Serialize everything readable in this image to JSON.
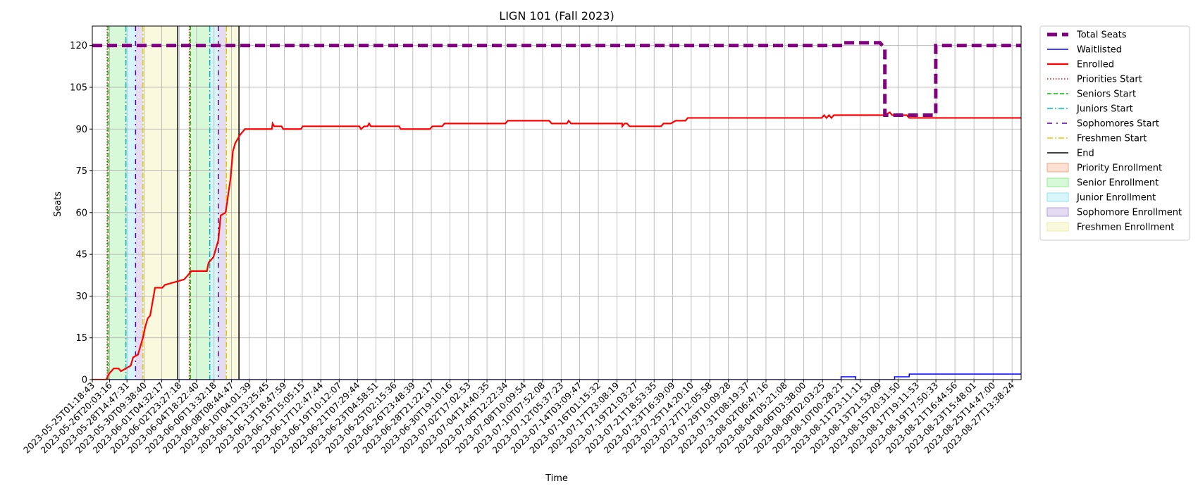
{
  "chart_data": {
    "type": "line",
    "title": "LIGN 101 (Fall 2023)",
    "xlabel": "Time",
    "ylabel": "Seats",
    "x_range": [
      "2023-05-25T01:18:43",
      "2023-08-28T12:00:00"
    ],
    "ylim": [
      0,
      127
    ],
    "yticks": [
      0,
      15,
      30,
      45,
      60,
      75,
      90,
      105,
      120
    ],
    "xticks": [
      "2023-05-25T01:18:43",
      "2023-05-26T20:03:16",
      "2023-05-28T14:47:31",
      "2023-05-30T09:38:40",
      "2023-06-01T04:32:17",
      "2023-06-02T23:27:18",
      "2023-06-04T18:22:40",
      "2023-06-06T13:32:18",
      "2023-06-08T08:44:47",
      "2023-06-10T04:01:39",
      "2023-06-11T23:25:45",
      "2023-06-13T18:47:59",
      "2023-06-15T15:05:15",
      "2023-06-17T12:47:44",
      "2023-06-19T10:12:07",
      "2023-06-21T07:29:44",
      "2023-06-23T04:58:51",
      "2023-06-25T02:15:36",
      "2023-06-26T23:48:39",
      "2023-06-28T21:22:17",
      "2023-06-30T19:10:16",
      "2023-07-02T17:02:53",
      "2023-07-04T14:40:35",
      "2023-07-06T12:22:34",
      "2023-07-08T10:09:54",
      "2023-07-10T07:52:08",
      "2023-07-12T05:37:23",
      "2023-07-14T03:09:47",
      "2023-07-16T01:15:32",
      "2023-07-17T23:08:19",
      "2023-07-19T21:03:27",
      "2023-07-21T18:53:35",
      "2023-07-23T16:39:09",
      "2023-07-25T14:20:10",
      "2023-07-27T12:05:58",
      "2023-07-29T10:09:28",
      "2023-07-31T08:19:37",
      "2023-08-02T06:47:16",
      "2023-08-04T05:21:08",
      "2023-08-06T03:38:00",
      "2023-08-08T02:03:25",
      "2023-08-10T00:28:21",
      "2023-08-11T23:11:11",
      "2023-08-13T21:53:09",
      "2023-08-15T20:31:50",
      "2023-08-17T19:11:53",
      "2023-08-19T17:50:33",
      "2023-08-21T16:44:56",
      "2023-08-23T15:48:01",
      "2023-08-25T14:47:00",
      "2023-08-27T13:38:24"
    ],
    "grid": true,
    "legend_position": "outside-right",
    "series": [
      {
        "name": "Total Seats",
        "color": "#800080",
        "style": "dashed-thick",
        "points": [
          [
            "2023-05-25T01:18:43",
            120
          ],
          [
            "2023-08-10T06:00:00",
            120
          ],
          [
            "2023-08-10T06:00:00",
            121
          ],
          [
            "2023-08-14T00:00:00",
            121
          ],
          [
            "2023-08-14T12:00:00",
            119
          ],
          [
            "2023-08-14T12:00:00",
            95
          ],
          [
            "2023-08-19T17:30:00",
            95
          ],
          [
            "2023-08-19T17:30:00",
            120
          ],
          [
            "2023-08-28T12:00:00",
            120
          ]
        ]
      },
      {
        "name": "Waitlisted",
        "color": "#0000ff",
        "style": "solid",
        "points": [
          [
            "2023-05-25T01:18:43",
            0
          ],
          [
            "2023-08-10T00:00:00",
            0
          ],
          [
            "2023-08-10T00:00:00",
            1
          ],
          [
            "2023-08-11T12:00:00",
            1
          ],
          [
            "2023-08-11T12:00:00",
            0
          ],
          [
            "2023-08-15T12:00:00",
            0
          ],
          [
            "2023-08-15T12:00:00",
            1
          ],
          [
            "2023-08-17T00:00:00",
            1
          ],
          [
            "2023-08-17T00:00:00",
            2
          ],
          [
            "2023-08-28T12:00:00",
            2
          ]
        ]
      },
      {
        "name": "Enrolled",
        "color": "#ff0000",
        "style": "solid",
        "points": [
          [
            "2023-05-25T01:18:43",
            0
          ],
          [
            "2023-05-26T12:00:00",
            0
          ],
          [
            "2023-05-26T18:00:00",
            2
          ],
          [
            "2023-05-27T00:00:00",
            3
          ],
          [
            "2023-05-27T06:00:00",
            4
          ],
          [
            "2023-05-27T18:00:00",
            4
          ],
          [
            "2023-05-28T00:00:00",
            3
          ],
          [
            "2023-05-28T12:00:00",
            4
          ],
          [
            "2023-05-29T00:00:00",
            5
          ],
          [
            "2023-05-29T06:00:00",
            8
          ],
          [
            "2023-05-29T18:00:00",
            9
          ],
          [
            "2023-05-30T00:00:00",
            12
          ],
          [
            "2023-05-30T06:00:00",
            15
          ],
          [
            "2023-05-30T12:00:00",
            19
          ],
          [
            "2023-05-30T18:00:00",
            22
          ],
          [
            "2023-05-31T00:00:00",
            23
          ],
          [
            "2023-05-31T06:00:00",
            28
          ],
          [
            "2023-05-31T12:00:00",
            33
          ],
          [
            "2023-06-01T06:00:00",
            33
          ],
          [
            "2023-06-01T12:00:00",
            34
          ],
          [
            "2023-06-02T12:00:00",
            35
          ],
          [
            "2023-06-03T12:00:00",
            36
          ],
          [
            "2023-06-04T00:00:00",
            38
          ],
          [
            "2023-06-04T06:00:00",
            39
          ],
          [
            "2023-06-05T20:00:00",
            39
          ],
          [
            "2023-06-06T00:00:00",
            42
          ],
          [
            "2023-06-06T12:00:00",
            44
          ],
          [
            "2023-06-07T00:00:00",
            50
          ],
          [
            "2023-06-07T06:00:00",
            59
          ],
          [
            "2023-06-07T18:00:00",
            60
          ],
          [
            "2023-06-08T06:00:00",
            72
          ],
          [
            "2023-06-08T12:00:00",
            82
          ],
          [
            "2023-06-08T18:00:00",
            85
          ],
          [
            "2023-06-09T06:00:00",
            88
          ],
          [
            "2023-06-09T12:00:00",
            89
          ],
          [
            "2023-06-09T18:00:00",
            90
          ],
          [
            "2023-06-12T12:00:00",
            90
          ],
          [
            "2023-06-12T14:00:00",
            92
          ],
          [
            "2023-06-12T18:00:00",
            91
          ],
          [
            "2023-06-13T12:00:00",
            91
          ],
          [
            "2023-06-13T16:00:00",
            90
          ],
          [
            "2023-06-15T12:00:00",
            90
          ],
          [
            "2023-06-15T16:00:00",
            91
          ],
          [
            "2023-06-21T12:00:00",
            91
          ],
          [
            "2023-06-21T16:00:00",
            90
          ],
          [
            "2023-06-22T00:00:00",
            91
          ],
          [
            "2023-06-22T08:00:00",
            91
          ],
          [
            "2023-06-22T12:00:00",
            92
          ],
          [
            "2023-06-22T16:00:00",
            91
          ],
          [
            "2023-06-25T14:00:00",
            91
          ],
          [
            "2023-06-25T18:00:00",
            90
          ],
          [
            "2023-06-28T18:00:00",
            90
          ],
          [
            "2023-06-29T00:00:00",
            91
          ],
          [
            "2023-06-30T00:00:00",
            91
          ],
          [
            "2023-06-30T06:00:00",
            92
          ],
          [
            "2023-07-06T12:00:00",
            92
          ],
          [
            "2023-07-06T18:00:00",
            93
          ],
          [
            "2023-07-08T08:00:00",
            93
          ],
          [
            "2023-07-11T00:00:00",
            93
          ],
          [
            "2023-07-11T06:00:00",
            92
          ],
          [
            "2023-07-12T20:00:00",
            92
          ],
          [
            "2023-07-13T00:00:00",
            93
          ],
          [
            "2023-07-13T06:00:00",
            92
          ],
          [
            "2023-07-18T12:00:00",
            92
          ],
          [
            "2023-07-18T12:30:00",
            91
          ],
          [
            "2023-07-18T18:00:00",
            92
          ],
          [
            "2023-07-19T00:00:00",
            92
          ],
          [
            "2023-07-19T06:00:00",
            91
          ],
          [
            "2023-07-22T12:00:00",
            91
          ],
          [
            "2023-07-22T18:00:00",
            92
          ],
          [
            "2023-07-23T12:00:00",
            92
          ],
          [
            "2023-07-24T00:00:00",
            93
          ],
          [
            "2023-07-25T00:00:00",
            93
          ],
          [
            "2023-07-25T06:00:00",
            94
          ],
          [
            "2023-08-08T00:00:00",
            94
          ],
          [
            "2023-08-08T06:00:00",
            95
          ],
          [
            "2023-08-08T12:00:00",
            94
          ],
          [
            "2023-08-08T18:00:00",
            95
          ],
          [
            "2023-08-09T00:00:00",
            94
          ],
          [
            "2023-08-09T06:00:00",
            95
          ],
          [
            "2023-08-14T12:00:00",
            95
          ],
          [
            "2023-08-15T00:00:00",
            96
          ],
          [
            "2023-08-15T06:00:00",
            95
          ],
          [
            "2023-08-16T18:00:00",
            95
          ],
          [
            "2023-08-17T00:00:00",
            94
          ],
          [
            "2023-08-28T12:00:00",
            94
          ]
        ]
      }
    ],
    "vlines": [
      {
        "name": "Priorities Start",
        "x": "2023-05-26T14:00:00",
        "color": "#ff0000",
        "style": "dotted"
      },
      {
        "name": "Priorities Start",
        "x": "2023-06-04T00:30:00",
        "color": "#ff0000",
        "style": "dotted"
      },
      {
        "name": "Seniors Start",
        "x": "2023-05-26T16:00:00",
        "color": "#00bb00",
        "style": "dashed"
      },
      {
        "name": "Seniors Start",
        "x": "2023-06-04T03:00:00",
        "color": "#00bb00",
        "style": "dashed"
      },
      {
        "name": "Juniors Start",
        "x": "2023-05-28T12:00:00",
        "color": "#00bfbf",
        "style": "dashdot"
      },
      {
        "name": "Juniors Start",
        "x": "2023-06-06T03:00:00",
        "color": "#00bfbf",
        "style": "dashdot"
      },
      {
        "name": "Sophomores Start",
        "x": "2023-05-29T12:00:00",
        "color": "#5500aa",
        "style": "loose-dashdot"
      },
      {
        "name": "Sophomores Start",
        "x": "2023-06-07T00:00:00",
        "color": "#5500aa",
        "style": "loose-dashdot"
      },
      {
        "name": "Freshmen Start",
        "x": "2023-05-30T06:00:00",
        "color": "#e6c800",
        "style": "dashdot"
      },
      {
        "name": "Freshmen Start",
        "x": "2023-06-07T20:00:00",
        "color": "#e6c800",
        "style": "dashdot"
      },
      {
        "name": "End",
        "x": "2023-06-02T20:00:00",
        "color": "#000000",
        "style": "solid"
      },
      {
        "name": "End",
        "x": "2023-06-09T03:00:00",
        "color": "#000000",
        "style": "solid"
      }
    ],
    "spans": [
      {
        "name": "Priority Enrollment",
        "from": "2023-05-26T14:00:00",
        "to": "2023-05-26T16:00:00",
        "color": "#f4a582"
      },
      {
        "name": "Senior Enrollment",
        "from": "2023-05-26T16:00:00",
        "to": "2023-05-28T12:00:00",
        "color": "#90ee90"
      },
      {
        "name": "Junior Enrollment",
        "from": "2023-05-28T12:00:00",
        "to": "2023-05-29T12:00:00",
        "color": "#8ee5ee"
      },
      {
        "name": "Sophomore Enrollment",
        "from": "2023-05-29T12:00:00",
        "to": "2023-05-30T06:00:00",
        "color": "#b39ddb"
      },
      {
        "name": "Freshmen Enrollment",
        "from": "2023-05-30T06:00:00",
        "to": "2023-06-02T20:00:00",
        "color": "#eeeea0"
      },
      {
        "name": "Priority Enrollment",
        "from": "2023-06-04T00:30:00",
        "to": "2023-06-04T03:00:00",
        "color": "#f4a582"
      },
      {
        "name": "Senior Enrollment",
        "from": "2023-06-04T03:00:00",
        "to": "2023-06-06T03:00:00",
        "color": "#90ee90"
      },
      {
        "name": "Junior Enrollment",
        "from": "2023-06-06T03:00:00",
        "to": "2023-06-07T00:00:00",
        "color": "#8ee5ee"
      },
      {
        "name": "Sophomore Enrollment",
        "from": "2023-06-07T00:00:00",
        "to": "2023-06-07T20:00:00",
        "color": "#b39ddb"
      },
      {
        "name": "Freshmen Enrollment",
        "from": "2023-06-07T20:00:00",
        "to": "2023-06-09T03:00:00",
        "color": "#eeeea0"
      }
    ],
    "legend": [
      {
        "label": "Total Seats",
        "kind": "line",
        "color": "#800080",
        "style": "dashed-thick"
      },
      {
        "label": "Waitlisted",
        "kind": "line",
        "color": "#0000ff",
        "style": "solid"
      },
      {
        "label": "Enrolled",
        "kind": "line",
        "color": "#ff0000",
        "style": "solid-thick"
      },
      {
        "label": "Priorities Start",
        "kind": "line",
        "color": "#ff0000",
        "style": "dotted"
      },
      {
        "label": "Seniors Start",
        "kind": "line",
        "color": "#00bb00",
        "style": "dashed"
      },
      {
        "label": "Juniors Start",
        "kind": "line",
        "color": "#00bfbf",
        "style": "dashdot"
      },
      {
        "label": "Sophomores Start",
        "kind": "line",
        "color": "#5500aa",
        "style": "loose-dashdot"
      },
      {
        "label": "Freshmen Start",
        "kind": "line",
        "color": "#e6c800",
        "style": "dashdot"
      },
      {
        "label": "End",
        "kind": "line",
        "color": "#000000",
        "style": "solid"
      },
      {
        "label": "Priority Enrollment",
        "kind": "patch",
        "color": "#f4a582"
      },
      {
        "label": "Senior Enrollment",
        "kind": "patch",
        "color": "#90ee90"
      },
      {
        "label": "Junior Enrollment",
        "kind": "patch",
        "color": "#8ee5ee"
      },
      {
        "label": "Sophomore Enrollment",
        "kind": "patch",
        "color": "#b39ddb"
      },
      {
        "label": "Freshmen Enrollment",
        "kind": "patch",
        "color": "#eeeea0"
      }
    ]
  }
}
